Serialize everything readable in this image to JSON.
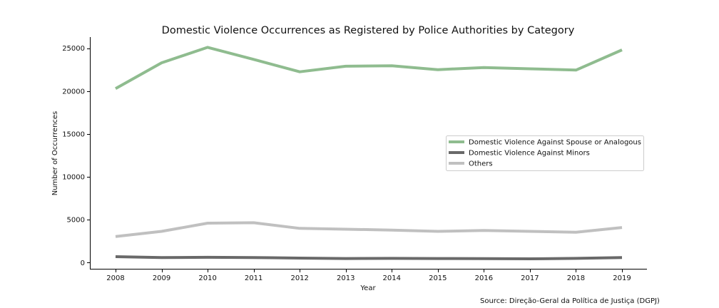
{
  "chart_data": {
    "type": "line",
    "title": "Domestic Violence Occurrences as Registered by Police Authorities by Category",
    "xlabel": "Year",
    "ylabel": "Number of Occurrences",
    "x": [
      "2008",
      "2009",
      "2010",
      "2011",
      "2012",
      "2013",
      "2014",
      "2015",
      "2016",
      "2017",
      "2018",
      "2019"
    ],
    "ylim": [
      -800,
      26300
    ],
    "yticks": [
      0,
      5000,
      10000,
      15000,
      20000,
      25000
    ],
    "ytick_labels": [
      "0",
      "5000",
      "10000",
      "15000",
      "20000",
      "25000"
    ],
    "grid": false,
    "legend_position": "center-right",
    "series": [
      {
        "name": "Domestic Violence Against Spouse or Analogous",
        "color": "#8fbc8f",
        "values": [
          20300,
          23300,
          25100,
          23700,
          22250,
          22900,
          22950,
          22500,
          22750,
          22600,
          22450,
          24800
        ]
      },
      {
        "name": "Domestic Violence Against Minors",
        "color": "#696969",
        "values": [
          700,
          600,
          620,
          600,
          530,
          480,
          500,
          480,
          470,
          450,
          500,
          600
        ]
      },
      {
        "name": "Others",
        "color": "#c0c0c0",
        "values": [
          3050,
          3650,
          4600,
          4650,
          4000,
          3900,
          3800,
          3650,
          3750,
          3650,
          3550,
          4100
        ]
      }
    ]
  },
  "source_note": "Source: Direção-Geral da Política de Justiça (DGPJ)"
}
